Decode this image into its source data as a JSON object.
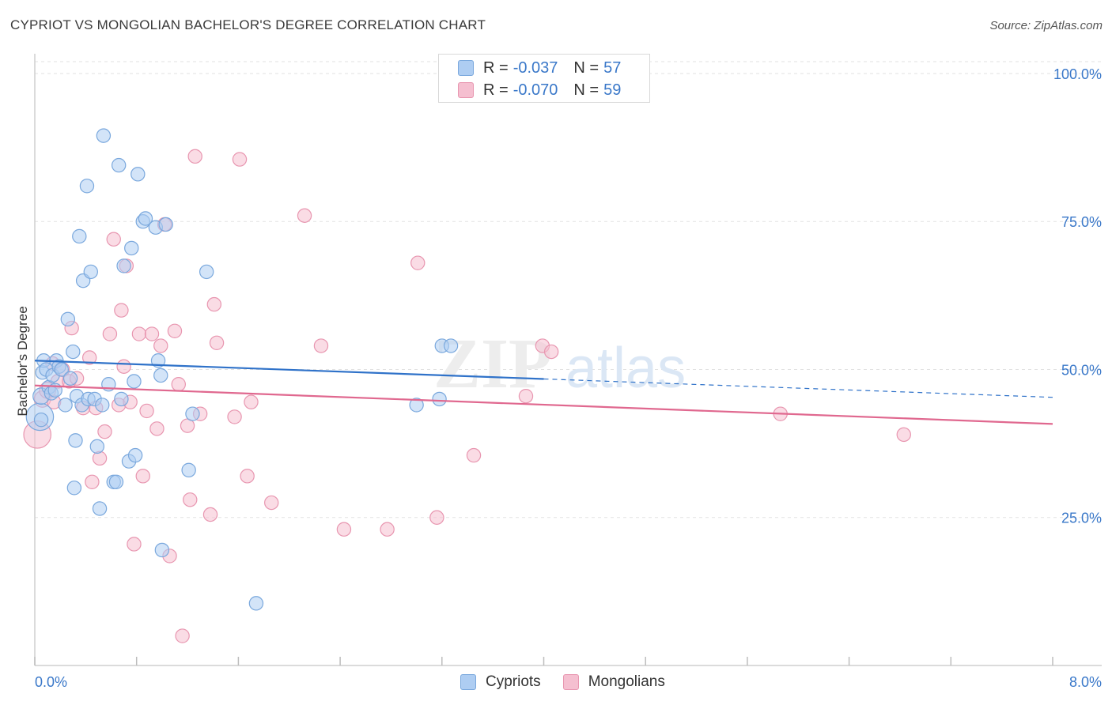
{
  "header": {
    "title": "CYPRIOT VS MONGOLIAN BACHELOR'S DEGREE CORRELATION CHART",
    "source": "Source: ZipAtlas.com"
  },
  "watermark": {
    "zip": "ZIP",
    "atlas": "atlas"
  },
  "stat_legend": [
    {
      "r_label": "R =",
      "r_value": "-0.037",
      "n_label": "N =",
      "n_value": "57"
    },
    {
      "r_label": "R =",
      "r_value": "-0.070",
      "n_label": "N =",
      "n_value": "59"
    }
  ],
  "bottom_legend": {
    "cypriots": "Cypriots",
    "mongolians": "Mongolians"
  },
  "colors": {
    "cypriots_fill": "#aecdf2",
    "cypriots_stroke": "#7aa8dd",
    "cypriots_line": "#2f72c9",
    "mongolians_fill": "#f5bfd0",
    "mongolians_stroke": "#e896b0",
    "mongolians_line": "#e0688f",
    "tick_label": "#3a78c9"
  },
  "chart_data": {
    "type": "scatter",
    "title": "CYPRIOT VS MONGOLIAN BACHELOR'S DEGREE CORRELATION CHART",
    "xlabel": "",
    "ylabel": "Bachelor's Degree",
    "xlim": [
      0,
      8
    ],
    "ylim": [
      0,
      102
    ],
    "x_tick_labels": [
      "0.0%",
      "8.0%"
    ],
    "y_ticks": [
      25,
      50,
      75,
      100
    ],
    "y_tick_labels": [
      "25.0%",
      "50.0%",
      "75.0%",
      "100.0%"
    ],
    "series": [
      {
        "name": "Cypriots",
        "r": -0.037,
        "n": 57,
        "trend": {
          "x_start": 0,
          "y_start": 51.5,
          "x_solid_end": 4.0,
          "x_end": 8.0,
          "y_end": 45.3
        },
        "points": [
          [
            0.04,
            42.0,
            20
          ],
          [
            0.05,
            45.5,
            12
          ],
          [
            0.06,
            49.5,
            10
          ],
          [
            0.07,
            51.5,
            10
          ],
          [
            0.09,
            50.0,
            10
          ],
          [
            0.11,
            47.0,
            10
          ],
          [
            0.13,
            46.0,
            10
          ],
          [
            0.14,
            49.0,
            10
          ],
          [
            0.17,
            51.5,
            10
          ],
          [
            0.19,
            50.5,
            10
          ],
          [
            0.21,
            50.0,
            10
          ],
          [
            0.24,
            44.0,
            10
          ],
          [
            0.26,
            58.5,
            10
          ],
          [
            0.28,
            48.5,
            10
          ],
          [
            0.3,
            53.0,
            10
          ],
          [
            0.31,
            30.0,
            10
          ],
          [
            0.33,
            45.5,
            10
          ],
          [
            0.35,
            72.5,
            10
          ],
          [
            0.37,
            44.0,
            10
          ],
          [
            0.38,
            65.0,
            10
          ],
          [
            0.41,
            81.0,
            10
          ],
          [
            0.42,
            45.0,
            10
          ],
          [
            0.44,
            66.5,
            10
          ],
          [
            0.47,
            45.0,
            10
          ],
          [
            0.49,
            37.0,
            10
          ],
          [
            0.51,
            26.5,
            10
          ],
          [
            0.53,
            44.0,
            10
          ],
          [
            0.54,
            89.5,
            10
          ],
          [
            0.58,
            47.5,
            10
          ],
          [
            0.62,
            31.0,
            10
          ],
          [
            0.64,
            31.0,
            10
          ],
          [
            0.66,
            84.5,
            10
          ],
          [
            0.68,
            45.0,
            10
          ],
          [
            0.7,
            67.5,
            10
          ],
          [
            0.74,
            34.5,
            10
          ],
          [
            0.76,
            70.5,
            10
          ],
          [
            0.78,
            48.0,
            10
          ],
          [
            0.79,
            35.5,
            10
          ],
          [
            0.81,
            83.0,
            10
          ],
          [
            0.85,
            75.0,
            10
          ],
          [
            0.87,
            75.5,
            10
          ],
          [
            0.95,
            74.0,
            10
          ],
          [
            0.97,
            51.5,
            10
          ],
          [
            0.99,
            49.0,
            10
          ],
          [
            1.0,
            19.5,
            10
          ],
          [
            1.03,
            74.5,
            10
          ],
          [
            1.21,
            33.0,
            10
          ],
          [
            1.24,
            42.5,
            10
          ],
          [
            1.35,
            66.5,
            10
          ],
          [
            1.74,
            10.5,
            10
          ],
          [
            3.0,
            44.0,
            10
          ],
          [
            3.18,
            45.0,
            10
          ],
          [
            3.2,
            54.0,
            10
          ],
          [
            3.27,
            54.0,
            10
          ],
          [
            0.05,
            41.5,
            10
          ],
          [
            0.32,
            38.0,
            10
          ],
          [
            0.16,
            46.5,
            10
          ]
        ]
      },
      {
        "name": "Mongolians",
        "r": -0.07,
        "n": 59,
        "trend": {
          "x_start": 0,
          "y_start": 47.3,
          "x_solid_end": 8.0,
          "x_end": 8.0,
          "y_end": 40.8
        },
        "points": [
          [
            0.02,
            39.0,
            20
          ],
          [
            0.06,
            45.0,
            12
          ],
          [
            0.1,
            46.5,
            12
          ],
          [
            0.14,
            51.0,
            10
          ],
          [
            0.18,
            48.0,
            10
          ],
          [
            0.22,
            50.0,
            10
          ],
          [
            0.27,
            48.0,
            10
          ],
          [
            0.29,
            57.0,
            10
          ],
          [
            0.33,
            48.5,
            10
          ],
          [
            0.38,
            43.5,
            10
          ],
          [
            0.43,
            52.0,
            10
          ],
          [
            0.45,
            31.0,
            10
          ],
          [
            0.48,
            43.5,
            10
          ],
          [
            0.51,
            35.0,
            10
          ],
          [
            0.55,
            39.5,
            10
          ],
          [
            0.59,
            56.0,
            10
          ],
          [
            0.62,
            72.0,
            10
          ],
          [
            0.66,
            44.0,
            10
          ],
          [
            0.68,
            60.0,
            10
          ],
          [
            0.7,
            50.5,
            10
          ],
          [
            0.72,
            67.5,
            10
          ],
          [
            0.75,
            44.5,
            10
          ],
          [
            0.78,
            20.5,
            10
          ],
          [
            0.82,
            56.0,
            10
          ],
          [
            0.85,
            32.0,
            10
          ],
          [
            0.88,
            43.0,
            10
          ],
          [
            0.92,
            56.0,
            10
          ],
          [
            0.96,
            40.0,
            10
          ],
          [
            0.99,
            54.0,
            10
          ],
          [
            1.02,
            74.5,
            10
          ],
          [
            1.06,
            18.5,
            10
          ],
          [
            1.1,
            56.5,
            10
          ],
          [
            1.13,
            47.5,
            10
          ],
          [
            1.16,
            5.0,
            10
          ],
          [
            1.2,
            40.5,
            10
          ],
          [
            1.22,
            28.0,
            10
          ],
          [
            1.26,
            86.0,
            10
          ],
          [
            1.3,
            42.5,
            10
          ],
          [
            1.38,
            25.5,
            10
          ],
          [
            1.41,
            61.0,
            10
          ],
          [
            1.43,
            54.5,
            10
          ],
          [
            1.57,
            42.0,
            10
          ],
          [
            1.61,
            85.5,
            10
          ],
          [
            1.67,
            32.0,
            10
          ],
          [
            1.7,
            44.5,
            10
          ],
          [
            1.86,
            27.5,
            10
          ],
          [
            2.12,
            76.0,
            10
          ],
          [
            2.25,
            54.0,
            10
          ],
          [
            2.43,
            23.0,
            10
          ],
          [
            2.77,
            23.0,
            10
          ],
          [
            3.01,
            68.0,
            10
          ],
          [
            3.16,
            25.0,
            10
          ],
          [
            3.45,
            35.5,
            10
          ],
          [
            3.86,
            45.5,
            10
          ],
          [
            3.99,
            54.0,
            10
          ],
          [
            4.06,
            53.0,
            10
          ],
          [
            5.86,
            42.5,
            10
          ],
          [
            6.83,
            39.0,
            10
          ],
          [
            0.15,
            44.5,
            10
          ]
        ]
      }
    ]
  }
}
